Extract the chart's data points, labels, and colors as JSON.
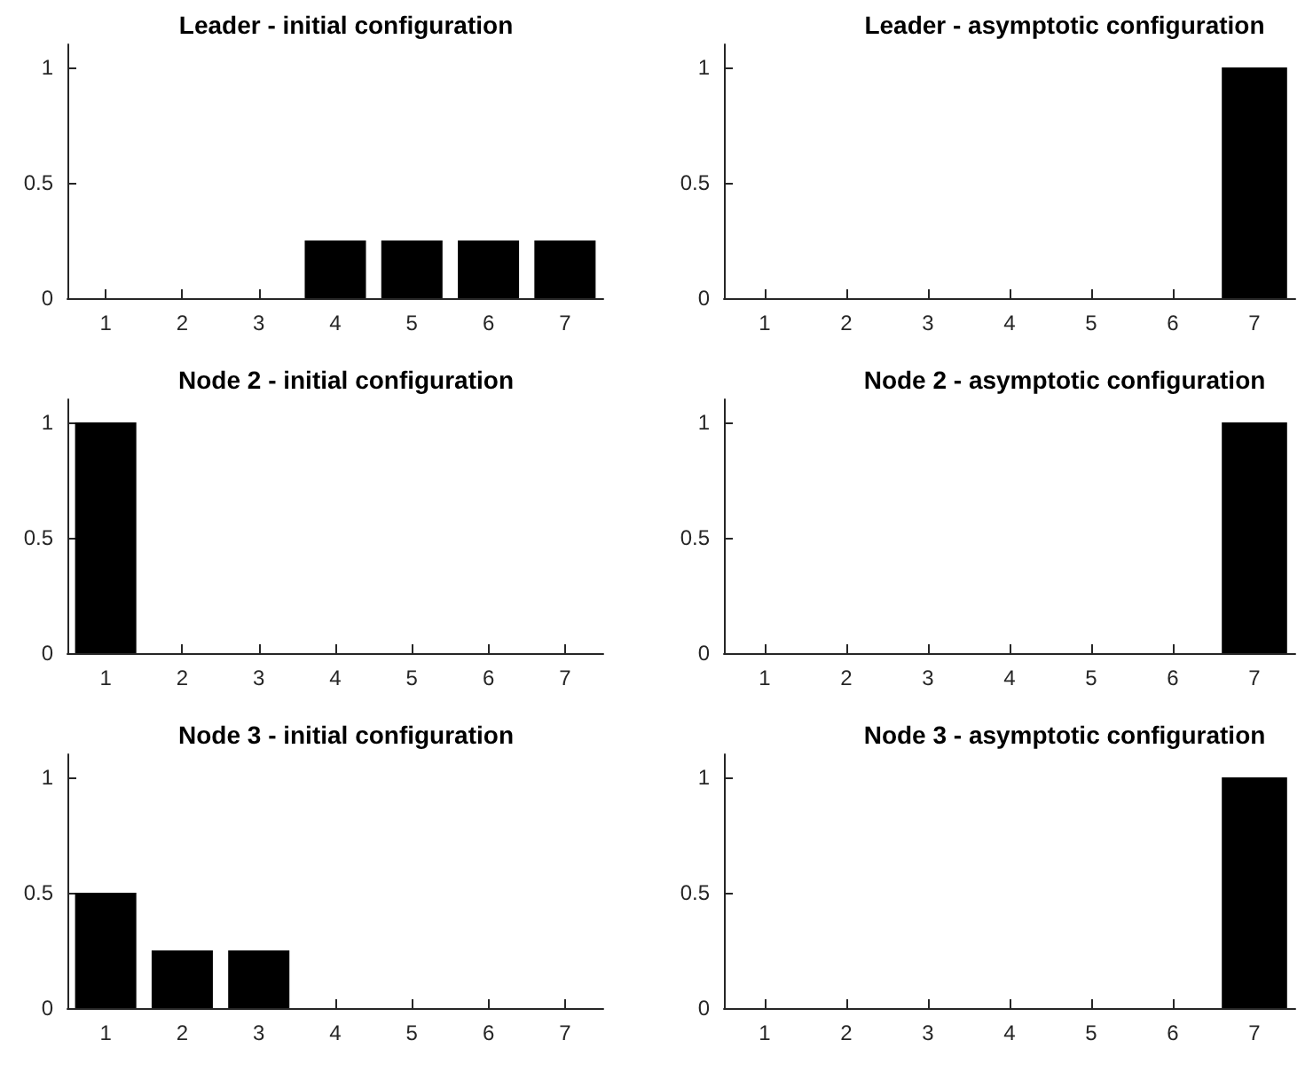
{
  "chart_data": [
    {
      "type": "bar",
      "title": "Leader - initial configuration",
      "categories": [
        "1",
        "2",
        "3",
        "4",
        "5",
        "6",
        "7"
      ],
      "values": [
        0,
        0,
        0,
        0.25,
        0.25,
        0.25,
        0.25
      ],
      "color": "#000000",
      "ylim": [
        0,
        1.1
      ],
      "yticks": [
        0,
        0.5,
        1
      ]
    },
    {
      "type": "bar",
      "title": "Leader - asymptotic configuration",
      "categories": [
        "1",
        "2",
        "3",
        "4",
        "5",
        "6",
        "7"
      ],
      "values": [
        0,
        0,
        0,
        0,
        0,
        0,
        1
      ],
      "color": "#000000",
      "ylim": [
        0,
        1.1
      ],
      "yticks": [
        0,
        0.5,
        1
      ]
    },
    {
      "type": "bar",
      "title": "Node 2 - initial configuration",
      "categories": [
        "1",
        "2",
        "3",
        "4",
        "5",
        "6",
        "7"
      ],
      "values": [
        1,
        0,
        0,
        0,
        0,
        0,
        0
      ],
      "color": "#000000",
      "ylim": [
        0,
        1.1
      ],
      "yticks": [
        0,
        0.5,
        1
      ]
    },
    {
      "type": "bar",
      "title": "Node 2 - asymptotic configuration",
      "categories": [
        "1",
        "2",
        "3",
        "4",
        "5",
        "6",
        "7"
      ],
      "values": [
        0,
        0,
        0,
        0,
        0,
        0,
        1
      ],
      "color": "#000000",
      "ylim": [
        0,
        1.1
      ],
      "yticks": [
        0,
        0.5,
        1
      ]
    },
    {
      "type": "bar",
      "title": "Node 3 - initial configuration",
      "categories": [
        "1",
        "2",
        "3",
        "4",
        "5",
        "6",
        "7"
      ],
      "values": [
        0.5,
        0.25,
        0.25,
        0,
        0,
        0,
        0
      ],
      "color": "#000000",
      "ylim": [
        0,
        1.1
      ],
      "yticks": [
        0,
        0.5,
        1
      ]
    },
    {
      "type": "bar",
      "title": "Node 3 - asymptotic configuration",
      "categories": [
        "1",
        "2",
        "3",
        "4",
        "5",
        "6",
        "7"
      ],
      "values": [
        0,
        0,
        0,
        0,
        0,
        0,
        1
      ],
      "color": "#000000",
      "ylim": [
        0,
        1.1
      ],
      "yticks": [
        0,
        0.5,
        1
      ]
    }
  ]
}
